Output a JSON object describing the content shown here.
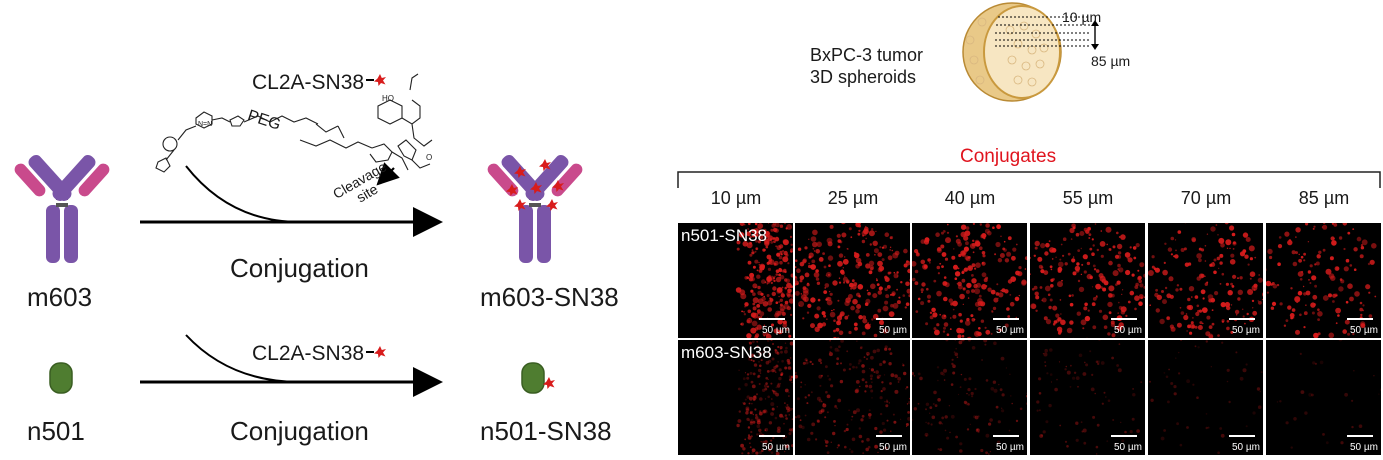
{
  "scheme": {
    "reagent_top": "CL2A-SN38",
    "reagent_bottom": "CL2A-SN38",
    "peg_label": "PEG",
    "cleavage_label_line1": "Cleavage",
    "cleavage_label_line2": "site",
    "process_top": "Conjugation",
    "process_bottom": "Conjugation",
    "antibody_start": "m603",
    "antibody_product": "m603-SN38",
    "nanobody_start": "n501",
    "nanobody_product": "n501-SN38"
  },
  "spheroid": {
    "title_line1": "BxPC-3 tumor",
    "title_line2": "3D spheroids",
    "depth_top": "10 µm",
    "depth_bottom": "85 µm"
  },
  "grid": {
    "header": "Conjugates",
    "columns": [
      "10 µm",
      "25 µm",
      "40 µm",
      "55 µm",
      "70 µm",
      "85 µm"
    ],
    "rows": [
      "n501-SN38",
      "m603-SN38"
    ],
    "scale_bar": "50 µm"
  },
  "colors": {
    "antibody_heavy": "#7a55a8",
    "antibody_light": "#c94a8c",
    "nanobody": "#4f7d30",
    "payload": "#d81c1c",
    "header_red": "#e0141e",
    "spheroid_fill": "#f2d9a8",
    "spheroid_rim": "#d3a24a"
  }
}
